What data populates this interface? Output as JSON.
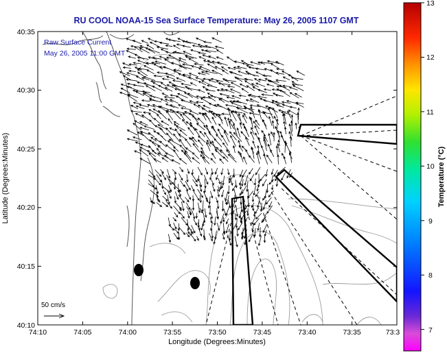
{
  "title": "RU COOL  NOAA-15  Sea Surface Temperature:  May 26, 2005 1107 GMT",
  "annotation": {
    "line1": "Raw Surface Current",
    "line2": "May 26, 2005 11:00 GMT"
  },
  "x_axis": {
    "label": "Longitude (Degrees:Minutes)",
    "ticks": [
      "74:10",
      "74:05",
      "74:00",
      "73:55",
      "73:50",
      "73:45",
      "73:40",
      "73:35",
      "73:3"
    ]
  },
  "y_axis": {
    "label": "Latitude (Degrees:Minutes)",
    "ticks": [
      "40:35",
      "40:30",
      "40:25",
      "40:20",
      "40:15",
      "40:10"
    ]
  },
  "scale_arrow": {
    "label": "50 cm/s"
  },
  "colorbar": {
    "label": "Temperature (°C)",
    "ticks": [
      "13",
      "12",
      "11",
      "10",
      "9",
      "8",
      "7"
    ],
    "min": 6.6,
    "max": 13
  },
  "colors": {
    "title": "#1a1aa8",
    "coast": "#555555",
    "contour": "#9a9a9a",
    "arrow": "#000000"
  }
}
